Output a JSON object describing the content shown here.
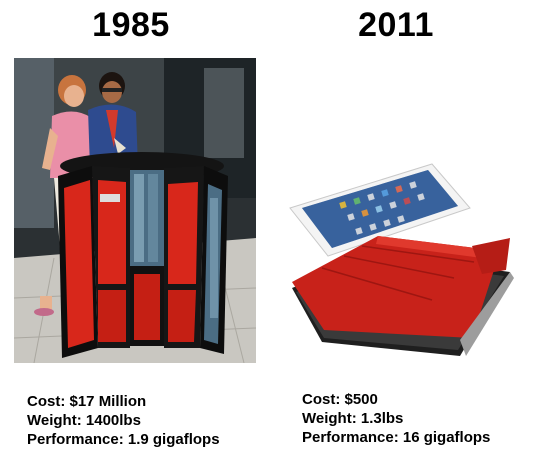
{
  "left": {
    "year": "1985",
    "stats": {
      "cost": "Cost: $17 Million",
      "weight": "Weight: 1400lbs",
      "performance": "Performance: 1.9 gigaflops"
    }
  },
  "right": {
    "year": "2011",
    "stats": {
      "cost": "Cost: $500",
      "weight": "Weight: 1.3lbs",
      "performance": "Performance: 16 gigaflops"
    }
  }
}
